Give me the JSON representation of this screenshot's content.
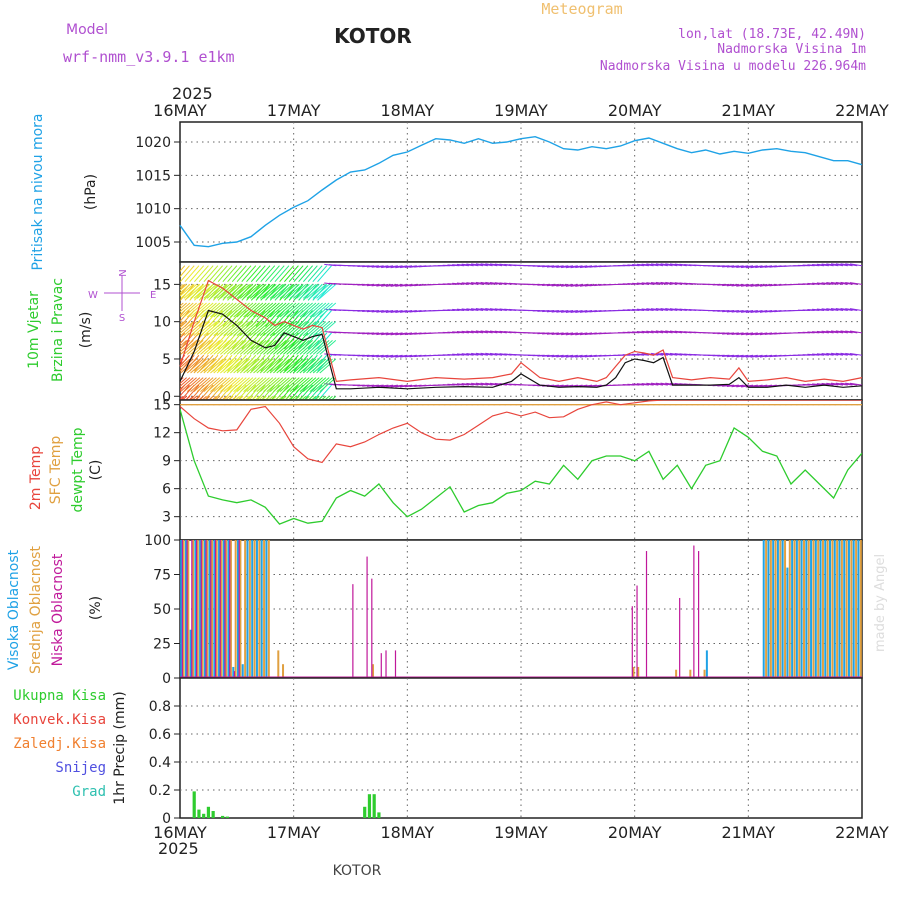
{
  "header": {
    "model_label": "Model",
    "model_name": "wrf-nmm_v3.9.1 e1km",
    "station": "KOTOR",
    "product": "Meteogram",
    "lonlat": "lon,lat (18.73E, 42.49N)",
    "elevation": "Nadmorska Visina 1m",
    "model_elevation": "Nadmorska Visina u modelu 226.964m",
    "credit": "made by Angel",
    "footer_station": "KOTOR"
  },
  "colors": {
    "pressure": "#1fa2e6",
    "wind_speed": "#111111",
    "gust": "#e8453c",
    "temp2m": "#e8453c",
    "sfc_temp": "#e0a040",
    "dewpoint": "#2ecc2e",
    "cloud_high": "#1fa2e6",
    "cloud_mid": "#e0a040",
    "cloud_low": "#c0189a",
    "precip_total": "#2ecc2e",
    "labels_purple": "#b050d0",
    "title_orange": "#f0c070"
  },
  "time_axis": {
    "year": "2025",
    "ticks": [
      "16MAY",
      "17MAY",
      "18MAY",
      "19MAY",
      "20MAY",
      "21MAY",
      "22MAY"
    ],
    "range_hours": [
      0,
      144
    ]
  },
  "chart_data": [
    {
      "type": "line",
      "panel": "pressure",
      "ylabel_lines": [
        "Pritisak na nivou mora"
      ],
      "unit": "(hPa)",
      "ylim": [
        1002,
        1023
      ],
      "yticks": [
        1005,
        1010,
        1015,
        1020
      ],
      "grid": true,
      "series": [
        {
          "x": [
            0,
            3,
            6,
            9,
            12,
            15,
            18,
            21,
            24,
            27,
            30,
            33,
            36,
            39,
            42,
            45,
            48,
            51,
            54,
            57,
            60,
            63,
            66,
            69,
            72,
            75,
            78,
            81,
            84,
            87,
            90,
            93,
            96,
            99,
            102,
            105,
            108,
            111,
            114,
            117,
            120,
            123,
            126,
            129,
            132,
            135,
            138,
            141,
            144
          ],
          "values": [
            1007.5,
            1004.5,
            1004.3,
            1004.8,
            1005.0,
            1005.8,
            1007.5,
            1009.0,
            1010.2,
            1011.2,
            1012.8,
            1014.3,
            1015.5,
            1015.8,
            1016.8,
            1018.0,
            1018.5,
            1019.5,
            1020.5,
            1020.3,
            1019.8,
            1020.5,
            1019.8,
            1020.0,
            1020.5,
            1020.8,
            1020.0,
            1019.0,
            1018.8,
            1019.3,
            1019.0,
            1019.4,
            1020.2,
            1020.6,
            1019.8,
            1019.0,
            1018.4,
            1018.8,
            1018.2,
            1018.6,
            1018.3,
            1018.8,
            1019.0,
            1018.6,
            1018.4,
            1017.8,
            1017.2,
            1017.2,
            1016.6
          ]
        }
      ]
    },
    {
      "type": "line",
      "panel": "wind",
      "ylabel_lines": [
        "10m Vjetar",
        "Brzina i Pravac"
      ],
      "unit": "(m/s)",
      "compass": [
        "N",
        "W",
        "E",
        "S"
      ],
      "ylim": [
        -0.5,
        18
      ],
      "yticks": [
        0,
        5,
        10,
        15
      ],
      "grid": true,
      "barb_levels": [
        1.5,
        5.5,
        8.5,
        11.5,
        15,
        17.5
      ],
      "series": [
        {
          "name": "wind_speed",
          "x": [
            0,
            3,
            6,
            9,
            12,
            15,
            18,
            20,
            22,
            24,
            26,
            28,
            30,
            33,
            36,
            42,
            48,
            54,
            60,
            66,
            70,
            72,
            76,
            80,
            84,
            88,
            90,
            92,
            94,
            96,
            98,
            100,
            102,
            104,
            108,
            112,
            116,
            118,
            120,
            124,
            128,
            132,
            136,
            140,
            144
          ],
          "values": [
            2,
            6,
            11.5,
            11,
            9.5,
            7.5,
            6.5,
            6.8,
            8.5,
            8,
            7.5,
            8,
            8.3,
            1,
            1,
            1.2,
            1,
            1.2,
            1.3,
            1.2,
            2,
            3,
            1.5,
            1.2,
            1.3,
            1.2,
            1.5,
            2.5,
            4.5,
            5,
            4.8,
            4.5,
            5.2,
            1.5,
            1.5,
            1.5,
            1.6,
            2.5,
            1.2,
            1.2,
            1.5,
            1.2,
            1.5,
            1.2,
            1.4
          ]
        },
        {
          "name": "gust",
          "x": [
            0,
            3,
            6,
            9,
            12,
            15,
            18,
            20,
            22,
            24,
            26,
            28,
            30,
            33,
            36,
            42,
            48,
            54,
            60,
            66,
            70,
            72,
            76,
            80,
            84,
            88,
            90,
            92,
            94,
            96,
            98,
            100,
            102,
            104,
            108,
            112,
            116,
            118,
            120,
            124,
            128,
            132,
            136,
            140,
            144
          ],
          "values": [
            4,
            10,
            15.5,
            14.5,
            13,
            11.5,
            10.5,
            9.5,
            10,
            9.5,
            9,
            9.5,
            9.2,
            2,
            2.2,
            2.5,
            2,
            2.5,
            2.3,
            2.5,
            3,
            4.5,
            2.5,
            2,
            2.5,
            2,
            2.5,
            4,
            5.5,
            6,
            5.8,
            5.5,
            6.2,
            2.5,
            2.2,
            2.5,
            2.3,
            3.8,
            2,
            2.2,
            2.5,
            2,
            2.3,
            2,
            2.5
          ]
        }
      ]
    },
    {
      "type": "line",
      "panel": "temperature",
      "ylabel_lines": [
        "2m Temp",
        "SFC Temp",
        "dewpt Temp"
      ],
      "unit": "(C)",
      "ylim": [
        0.5,
        15.5
      ],
      "yticks": [
        3,
        6,
        9,
        12,
        15
      ],
      "grid": true,
      "series": [
        {
          "name": "2m Temp",
          "x": [
            0,
            3,
            6,
            9,
            12,
            15,
            18,
            21,
            24,
            27,
            30,
            33,
            36,
            39,
            42,
            45,
            48,
            51,
            54,
            57,
            60,
            63,
            66,
            69,
            72,
            75,
            78,
            81,
            84,
            87,
            90,
            93,
            96,
            99,
            102,
            105,
            108,
            111,
            114,
            117,
            120,
            123,
            126,
            129,
            132,
            135,
            138,
            141,
            144
          ],
          "values": [
            14.8,
            13.5,
            12.5,
            12.2,
            12.3,
            14.5,
            14.8,
            13.0,
            10.5,
            9.2,
            8.8,
            10.8,
            10.5,
            11.0,
            11.8,
            12.5,
            13.0,
            12.0,
            11.3,
            11.2,
            11.8,
            12.8,
            13.8,
            14.2,
            13.8,
            14.2,
            13.6,
            13.7,
            14.5,
            15.0,
            15.3,
            15.0,
            15.2,
            15.4,
            15.5,
            15.5,
            15.5,
            15.5,
            15.5,
            15.5,
            15.5,
            15.5,
            15.5,
            15.5,
            15.5,
            15.5,
            15.5,
            15.5,
            15.5
          ]
        },
        {
          "name": "SFC Temp",
          "x": [
            0,
            144
          ],
          "values": [
            15.0,
            15.0
          ]
        },
        {
          "name": "dewpt Temp",
          "x": [
            0,
            3,
            6,
            9,
            12,
            15,
            18,
            21,
            24,
            27,
            30,
            33,
            36,
            39,
            42,
            45,
            48,
            51,
            54,
            57,
            60,
            63,
            66,
            69,
            72,
            75,
            78,
            81,
            84,
            87,
            90,
            93,
            96,
            99,
            102,
            105,
            108,
            111,
            114,
            117,
            120,
            123,
            126,
            129,
            132,
            135,
            138,
            141,
            144
          ],
          "values": [
            14.5,
            9.0,
            5.2,
            4.8,
            4.5,
            4.8,
            4.0,
            2.2,
            2.8,
            2.3,
            2.5,
            5.0,
            5.8,
            5.2,
            6.5,
            4.5,
            3.0,
            3.8,
            5.0,
            6.2,
            3.5,
            4.2,
            4.5,
            5.5,
            5.8,
            6.8,
            6.5,
            8.5,
            7.0,
            9.0,
            9.5,
            9.5,
            9.0,
            10.0,
            7.0,
            8.5,
            6.0,
            8.5,
            9.0,
            12.5,
            11.5,
            10.0,
            9.5,
            6.5,
            8.0,
            6.5,
            5.0,
            8.0,
            9.8
          ]
        }
      ]
    },
    {
      "type": "bar",
      "panel": "clouds",
      "ylabel_lines": [
        "Visoka Oblacnost",
        "Srednja Oblacnost",
        "Niska Oblacnost"
      ],
      "unit": "(%)",
      "ylim": [
        0,
        100
      ],
      "yticks": [
        0,
        25,
        50,
        75,
        100
      ],
      "grid": true,
      "series": [
        {
          "name": "Visoka Oblacnost",
          "x": [
            0,
            1,
            2,
            3,
            4,
            5,
            6,
            7,
            8,
            9,
            10,
            11,
            12,
            13,
            14,
            15,
            16,
            17,
            18,
            111,
            123,
            124,
            125,
            126,
            127,
            128,
            129,
            130,
            131,
            132,
            133,
            134,
            135,
            136,
            137,
            138,
            139,
            140,
            141,
            142,
            143
          ],
          "values": [
            100,
            100,
            35,
            100,
            100,
            100,
            100,
            100,
            100,
            100,
            100,
            8,
            100,
            10,
            100,
            100,
            100,
            100,
            100,
            20,
            100,
            100,
            100,
            100,
            100,
            80,
            100,
            100,
            100,
            100,
            100,
            100,
            100,
            100,
            100,
            100,
            100,
            100,
            100,
            100,
            100
          ]
        },
        {
          "name": "Srednja Oblacnost",
          "x": [
            0,
            1,
            2,
            3,
            4,
            5,
            6,
            7,
            8,
            9,
            10,
            11,
            12,
            13,
            14,
            15,
            16,
            17,
            18,
            20,
            21,
            40,
            95,
            96,
            104,
            107,
            110,
            123,
            124,
            125,
            126,
            127,
            128,
            129,
            130,
            131,
            132,
            133,
            134,
            135,
            136,
            137,
            138,
            139,
            140,
            141,
            142,
            143
          ],
          "values": [
            100,
            100,
            100,
            100,
            100,
            100,
            100,
            100,
            100,
            100,
            100,
            100,
            100,
            100,
            100,
            100,
            100,
            100,
            100,
            20,
            10,
            10,
            8,
            8,
            6,
            6,
            6,
            100,
            100,
            100,
            100,
            100,
            100,
            100,
            100,
            100,
            100,
            100,
            100,
            100,
            100,
            100,
            100,
            100,
            100,
            100,
            100,
            100
          ]
        },
        {
          "name": "Niska Oblacnost",
          "x": [
            0,
            1,
            2,
            3,
            4,
            5,
            6,
            7,
            8,
            9,
            10,
            11,
            12,
            36,
            39,
            40,
            42,
            43,
            45,
            95,
            96,
            98,
            105,
            108,
            109
          ],
          "values": [
            100,
            100,
            100,
            100,
            100,
            100,
            100,
            100,
            100,
            100,
            100,
            5,
            100,
            68,
            88,
            72,
            18,
            20,
            20,
            52,
            67,
            92,
            58,
            96,
            92
          ]
        }
      ]
    },
    {
      "type": "bar",
      "panel": "precip",
      "ylabel_lines": [
        "Ukupna Kisa",
        "Konvek.Kisa",
        "Zaledj.Kisa",
        "Snijeg",
        "Grad"
      ],
      "unit": "1hr Precip (mm)",
      "ylim": [
        0,
        1.0
      ],
      "yticks": [
        0,
        0.2,
        0.4,
        0.6,
        0.8
      ],
      "grid": true,
      "series": [
        {
          "name": "Ukupna Kisa",
          "x": [
            3,
            4,
            5,
            6,
            7,
            9,
            10,
            39,
            40,
            41,
            42
          ],
          "values": [
            0.19,
            0.06,
            0.03,
            0.08,
            0.05,
            0.015,
            0.01,
            0.08,
            0.17,
            0.17,
            0.04
          ]
        }
      ]
    }
  ]
}
